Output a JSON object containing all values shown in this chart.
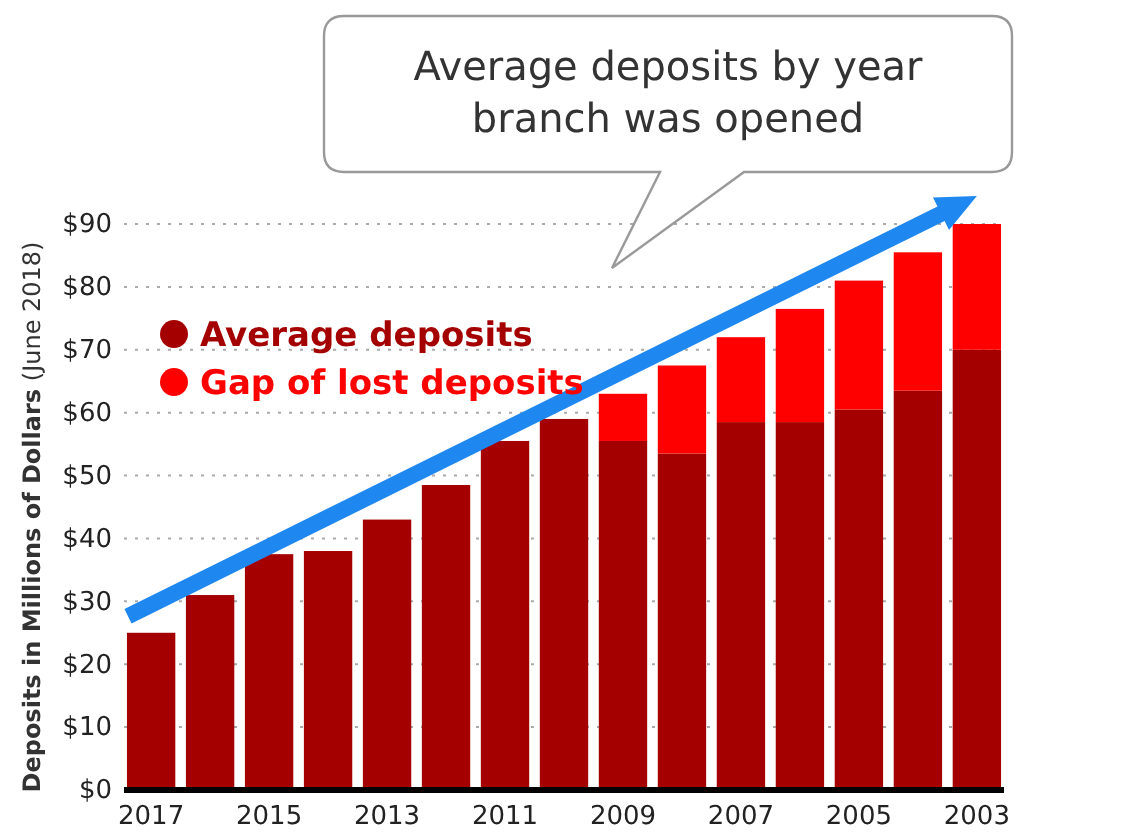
{
  "chart_data": {
    "type": "bar",
    "title": "Average deposits by year branch was opened",
    "ylabel": "Deposits in Millions of Dollars (June 2018)",
    "categories": [
      "2017",
      null,
      "2015",
      null,
      "2013",
      null,
      "2011",
      null,
      "2009",
      null,
      "2007",
      null,
      "2005",
      null,
      "2003"
    ],
    "stacked": true,
    "series": [
      {
        "name": "Average deposits",
        "color": "#a50000",
        "values": [
          25,
          31,
          37.5,
          38,
          43,
          48.5,
          55.5,
          59,
          55.5,
          53.5,
          58.5,
          58.5,
          60.5,
          63.5,
          70
        ]
      },
      {
        "name": "Gap of lost deposits",
        "color": "#ff0000",
        "values": [
          null,
          null,
          null,
          null,
          null,
          null,
          null,
          null,
          7.5,
          14,
          13.5,
          18,
          20.5,
          22,
          20
        ]
      }
    ],
    "ylim": [
      0,
      90
    ],
    "yticks": [
      {
        "value": 0,
        "label": "$0"
      },
      {
        "value": 10,
        "label": "$10"
      },
      {
        "value": 20,
        "label": "$20"
      },
      {
        "value": 30,
        "label": "$30"
      },
      {
        "value": 40,
        "label": "$40"
      },
      {
        "value": 50,
        "label": "$50"
      },
      {
        "value": 60,
        "label": "$60"
      },
      {
        "value": 70,
        "label": "$70"
      },
      {
        "value": 80,
        "label": "$80"
      },
      {
        "value": 90,
        "label": "$90"
      }
    ],
    "grid": "y",
    "legend": "top left"
  }
}
